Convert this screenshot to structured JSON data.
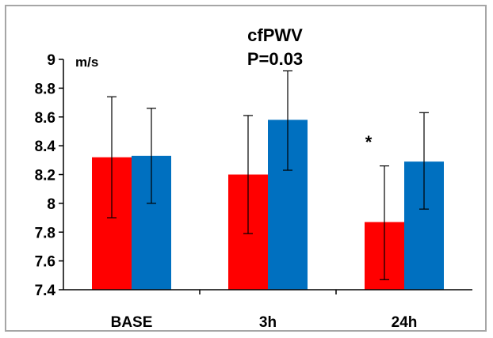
{
  "chart_data": {
    "type": "bar",
    "title": "cfPWV",
    "subtitle": "P=0.03",
    "ylabel": "m/s",
    "xlabel": "",
    "categories": [
      "BASE",
      "3h",
      "24h"
    ],
    "ylim": [
      7.4,
      9
    ],
    "yticks": [
      "7.4",
      "7.6",
      "7.8",
      "8",
      "8.2",
      "8.4",
      "8.6",
      "8.8",
      "9"
    ],
    "yticks_values": [
      7.4,
      7.6,
      7.8,
      8.0,
      8.2,
      8.4,
      8.6,
      8.8,
      9.0
    ],
    "grid": false,
    "legend": "none",
    "series": [
      {
        "color": "#ff0000",
        "values": [
          8.32,
          8.2,
          7.87
        ],
        "error_low": [
          7.9,
          7.79,
          7.47
        ],
        "error_high": [
          8.74,
          8.61,
          8.26
        ]
      },
      {
        "color": "#0070c0",
        "values": [
          8.33,
          8.58,
          8.29
        ],
        "error_low": [
          8.0,
          8.23,
          7.96
        ],
        "error_high": [
          8.66,
          8.92,
          8.63
        ]
      }
    ],
    "annotations": [
      {
        "text": "*",
        "category": "24h",
        "series_index": 0,
        "y": 8.45
      }
    ]
  }
}
